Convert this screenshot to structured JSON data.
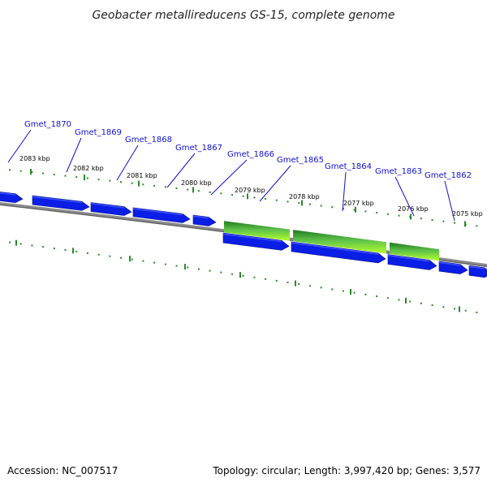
{
  "title": "Geobacter metallireducens GS-15, complete genome",
  "footer": {
    "accession": "Accession: NC_007517",
    "summary": "Topology: circular; Length: 3,997,420 bp; Genes: 3,577"
  },
  "colors": {
    "background": "#ffffff",
    "gene_arrow": "#0a1ee6",
    "gene_arrow_highlight": "#3c50ff",
    "cds_feature_dark": "#1e7a1e",
    "cds_feature_light": "#b4ff2a",
    "backbone": "#777777",
    "tick": "#2a8a2a",
    "gene_label": "#1010d0"
  },
  "ticks_kbp": [
    {
      "label": "2083 kbp"
    },
    {
      "label": "2082 kbp"
    },
    {
      "label": "2081 kbp"
    },
    {
      "label": "2080 kbp"
    },
    {
      "label": "2079 kbp"
    },
    {
      "label": "2078 kbp"
    },
    {
      "label": "2077 kbp"
    },
    {
      "label": "2076 kbp"
    },
    {
      "label": "2075 kbp"
    }
  ],
  "gene_labels": [
    {
      "name": "Gmet_1870"
    },
    {
      "name": "Gmet_1869"
    },
    {
      "name": "Gmet_1868"
    },
    {
      "name": "Gmet_1867"
    },
    {
      "name": "Gmet_1866"
    },
    {
      "name": "Gmet_1865"
    },
    {
      "name": "Gmet_1864"
    },
    {
      "name": "Gmet_1863"
    },
    {
      "name": "Gmet_1862"
    }
  ],
  "gene_strands": {
    "upper_strand_count": 5,
    "lower_strand_count": 5,
    "cds_features": 3
  }
}
